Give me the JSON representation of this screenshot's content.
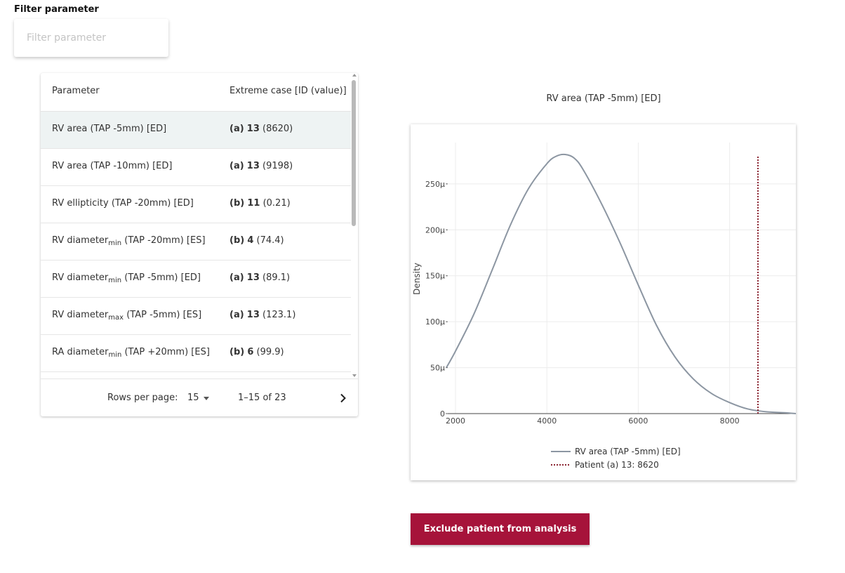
{
  "filter": {
    "label": "Filter parameter",
    "placeholder": "Filter parameter"
  },
  "table": {
    "headers": {
      "parameter": "Parameter",
      "extreme": "Extreme case [ID (value)]"
    },
    "rows": [
      {
        "param": "RV area (TAP -5mm) [ED]",
        "param_main": "RV area (TAP -5mm) [ED]",
        "param_sub": "",
        "param_suffix": "",
        "group": "(a)",
        "id": "13",
        "value": "(8620)",
        "selected": true
      },
      {
        "param": "RV area (TAP -10mm) [ED]",
        "param_main": "RV area (TAP -10mm) [ED]",
        "param_sub": "",
        "param_suffix": "",
        "group": "(a)",
        "id": "13",
        "value": "(9198)",
        "selected": false
      },
      {
        "param": "RV ellipticity (TAP -20mm) [ED]",
        "param_main": "RV ellipticity (TAP -20mm) [ED]",
        "param_sub": "",
        "param_suffix": "",
        "group": "(b)",
        "id": "11",
        "value": "(0.21)",
        "selected": false
      },
      {
        "param": "RV diameter min (TAP -20mm) [ES]",
        "param_main": "RV diameter",
        "param_sub": "min",
        "param_suffix": " (TAP -20mm) [ES]",
        "group": "(b)",
        "id": "4",
        "value": "(74.4)",
        "selected": false
      },
      {
        "param": "RV diameter min (TAP -5mm) [ED]",
        "param_main": "RV diameter",
        "param_sub": "min",
        "param_suffix": " (TAP -5mm) [ED]",
        "group": "(a)",
        "id": "13",
        "value": "(89.1)",
        "selected": false
      },
      {
        "param": "RV diameter max (TAP -5mm) [ES]",
        "param_main": "RV diameter",
        "param_sub": "max",
        "param_suffix": " (TAP -5mm) [ES]",
        "group": "(a)",
        "id": "13",
        "value": "(123.1)",
        "selected": false
      },
      {
        "param": "RA diameter min (TAP +20mm) [ES]",
        "param_main": "RA diameter",
        "param_sub": "min",
        "param_suffix": " (TAP +20mm) [ES]",
        "group": "(b)",
        "id": "6",
        "value": "(99.9)",
        "selected": false
      },
      {
        "param": "",
        "param_main": "",
        "param_sub": "",
        "param_suffix": "",
        "group": "",
        "id": "",
        "value": "",
        "selected": false
      }
    ],
    "pagination": {
      "rows_per_page_label": "Rows per page:",
      "rows_per_page": "15",
      "range": "1–15 of 23"
    }
  },
  "chart_data": {
    "type": "line",
    "title": "RV area (TAP -5mm) [ED]",
    "xlabel": "",
    "ylabel": "Density",
    "xlim": [
      1800,
      9450
    ],
    "ylim": [
      0,
      295
    ],
    "y_unit": "µ",
    "xticks": [
      2000,
      4000,
      6000,
      8000
    ],
    "yticks": [
      0,
      50,
      100,
      150,
      200,
      250
    ],
    "ytick_labels": [
      "0",
      "50µ",
      "100µ",
      "150µ",
      "200µ",
      "250µ"
    ],
    "grid": true,
    "legend_position": "bottom-center",
    "series": [
      {
        "name": "RV area (TAP -5mm) [ED]",
        "color": "#8c96a2",
        "style": "solid",
        "x": [
          1800,
          2000,
          2400,
          2800,
          3200,
          3600,
          4000,
          4200,
          4400,
          4600,
          4800,
          5200,
          5600,
          6000,
          6400,
          6800,
          7200,
          7600,
          8000,
          8400,
          8800,
          9200,
          9450
        ],
        "y": [
          50,
          68,
          108,
          156,
          205,
          245,
          272,
          280,
          282,
          278,
          265,
          228,
          186,
          140,
          96,
          62,
          38,
          22,
          12,
          5,
          2,
          1,
          0
        ]
      },
      {
        "name": "Patient (a) 13: 8620",
        "color": "#8b2532",
        "style": "dotted",
        "x": [
          8620,
          8620
        ],
        "y": [
          0,
          280
        ]
      }
    ]
  },
  "actions": {
    "exclude_label": "Exclude patient from analysis"
  },
  "colors": {
    "accent": "#a6133a",
    "selected_row": "#eef3f3"
  },
  "icons": {
    "next": "chevron-right-icon",
    "dropdown": "caret-down-icon"
  }
}
